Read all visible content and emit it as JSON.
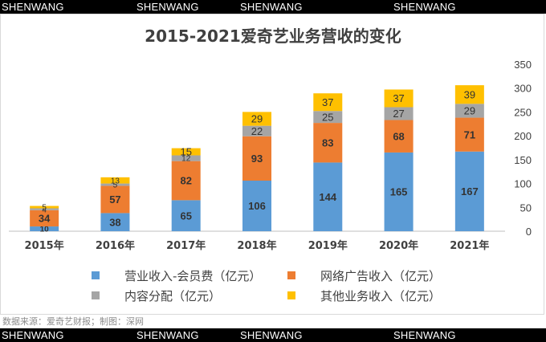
{
  "watermarks": {
    "top": [
      "SHENWANG",
      "SHENWANG",
      "SHENWANG",
      "SHENWANG"
    ],
    "bottom": [
      "SHENWANG",
      "SHENWANG",
      "SHENWANG",
      "SHENWANG"
    ]
  },
  "source_note": "数据来源：爱奇艺财报；制图：深网",
  "chart_data": {
    "type": "bar",
    "stacked": true,
    "title": "2015-2021爱奇艺业务营收的变化",
    "categories": [
      "2015年",
      "2016年",
      "2017年",
      "2018年",
      "2019年",
      "2020年",
      "2021年"
    ],
    "series": [
      {
        "name": "营业收入-会员费（亿元）",
        "color": "#5b9bd5",
        "values": [
          10,
          38,
          65,
          106,
          144,
          165,
          167
        ]
      },
      {
        "name": "网络广告收入（亿元）",
        "color": "#ed7d31",
        "values": [
          34,
          57,
          82,
          93,
          83,
          68,
          71
        ]
      },
      {
        "name": "内容分配（亿元）",
        "color": "#a5a5a5",
        "values": [
          4,
          5,
          12,
          22,
          25,
          27,
          29
        ]
      },
      {
        "name": "其他业务收入（亿元）",
        "color": "#ffc000",
        "values": [
          5,
          13,
          15,
          29,
          37,
          37,
          39
        ]
      }
    ],
    "ylim": [
      0,
      350
    ],
    "yticks": [
      0,
      50,
      100,
      150,
      200,
      250,
      300,
      350
    ],
    "yaxis_position": "right",
    "grid": false,
    "legend_position": "bottom",
    "xlabel": "",
    "ylabel": ""
  }
}
